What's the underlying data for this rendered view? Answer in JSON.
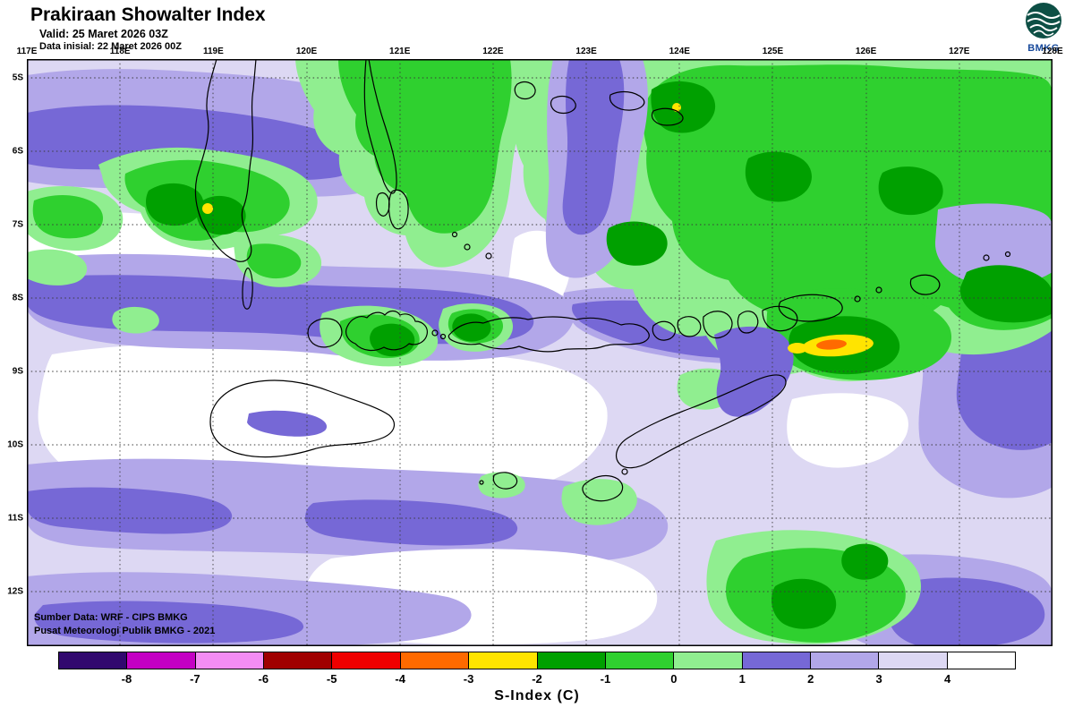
{
  "header": {
    "title": "Prakiraan Showalter Index",
    "valid_label": "Valid: 25 Maret 2026 03Z",
    "init_label": "Data inisial: 22 Maret 2026 00Z"
  },
  "logo": {
    "text": "BMKG"
  },
  "map": {
    "lon_labels": [
      "117E",
      "118E",
      "119E",
      "120E",
      "121E",
      "122E",
      "123E",
      "124E",
      "125E",
      "126E",
      "127E",
      "128E"
    ],
    "lat_labels": [
      "5S",
      "6S",
      "7S",
      "8S",
      "9S",
      "10S",
      "11S",
      "12S"
    ],
    "source_line1": "Sumber Data: WRF - CIPS BMKG",
    "source_line2": "Pusat Meteorologi Publik BMKG - 2021"
  },
  "legend": {
    "title": "S-Index (C)",
    "tick_labels": [
      "-8",
      "-7",
      "-6",
      "-5",
      "-4",
      "-3",
      "-2",
      "-1",
      "0",
      "1",
      "2",
      "3",
      "4"
    ],
    "colors": [
      "#31086e",
      "#c400c4",
      "#f48cf4",
      "#a00000",
      "#f00000",
      "#ff6a00",
      "#ffe400",
      "#00a000",
      "#2fd02f",
      "#90ee90",
      "#7668d6",
      "#b2a7e9",
      "#ddd8f3",
      "#ffffff"
    ]
  }
}
